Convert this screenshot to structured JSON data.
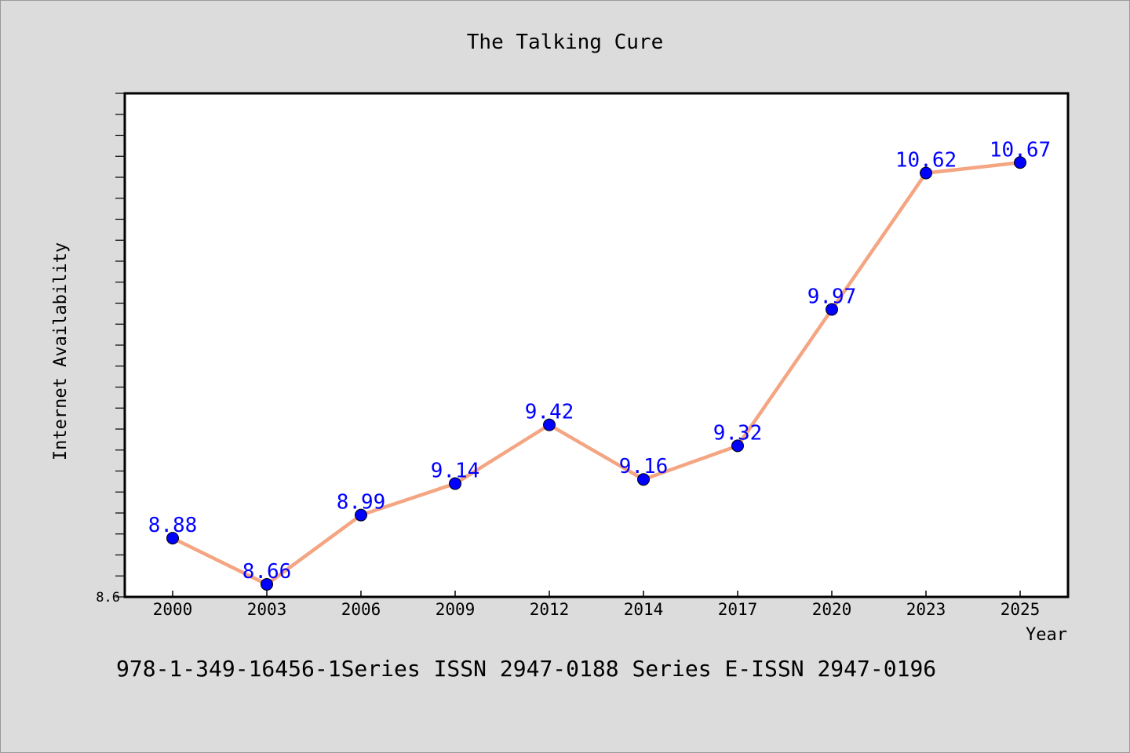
{
  "chart_data": {
    "type": "line",
    "title": "The Talking Cure",
    "xlabel": "Year",
    "ylabel": "Internet Availability",
    "categories": [
      "2000",
      "2003",
      "2006",
      "2009",
      "2012",
      "2014",
      "2017",
      "2020",
      "2023",
      "2025"
    ],
    "series": [
      {
        "values": [
          8.88,
          8.66,
          8.99,
          9.14,
          9.42,
          9.16,
          9.32,
          9.97,
          10.62,
          10.67
        ],
        "data_labels": [
          "8.88",
          "8.66",
          "8.99",
          "9.14",
          "9.42",
          "9.16",
          "9.32",
          "9.97",
          "10.62",
          "10.67"
        ],
        "line_color": "#f4a582",
        "marker_color": "#0000ff"
      }
    ],
    "ylim": [
      8.6,
      11.0
    ],
    "y_tick_labels": [
      "8.6"
    ],
    "grid": false,
    "legend": "none"
  },
  "footer": {
    "text": "978-1-349-16456-1Series ISSN 2947-0188 Series E-ISSN 2947-0196"
  },
  "colors": {
    "background": "#dcdcdc",
    "plot_background": "#ffffff",
    "line": "#f4a582",
    "marker": "#0000ff",
    "data_label": "#0000ff"
  }
}
